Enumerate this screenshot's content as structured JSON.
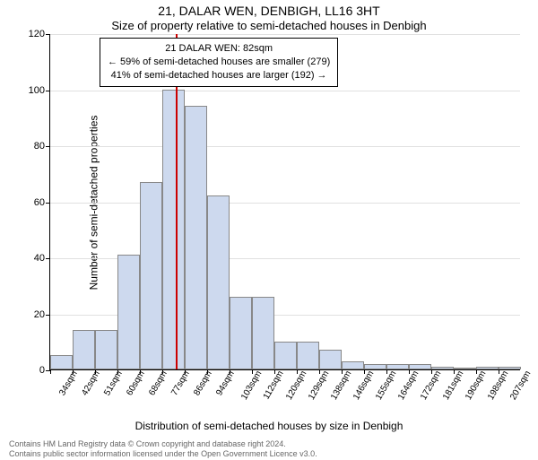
{
  "title": "21, DALAR WEN, DENBIGH, LL16 3HT",
  "subtitle": "Size of property relative to semi-detached houses in Denbigh",
  "y_axis": {
    "label": "Number of semi-detached properties",
    "ticks": [
      0,
      20,
      40,
      60,
      80,
      100,
      120
    ],
    "max": 120
  },
  "x_axis": {
    "label": "Distribution of semi-detached houses by size in Denbigh",
    "categories": [
      "34sqm",
      "42sqm",
      "51sqm",
      "60sqm",
      "68sqm",
      "77sqm",
      "86sqm",
      "94sqm",
      "103sqm",
      "112sqm",
      "120sqm",
      "129sqm",
      "138sqm",
      "146sqm",
      "155sqm",
      "164sqm",
      "172sqm",
      "181sqm",
      "190sqm",
      "198sqm",
      "207sqm"
    ]
  },
  "histogram": {
    "type": "histogram",
    "bar_color": "#cdd9ee",
    "bar_border": "#888888",
    "grid_color": "#e0e0e0",
    "background_color": "#ffffff",
    "values": [
      5,
      14,
      14,
      41,
      67,
      100,
      94,
      62,
      26,
      26,
      10,
      10,
      7,
      3,
      2,
      2,
      2,
      1,
      0,
      1,
      1
    ]
  },
  "marker": {
    "value": 82,
    "position_category_index": 5.6,
    "color": "#cc0000"
  },
  "legend": {
    "line1": "21 DALAR WEN: 82sqm",
    "line2": "← 59% of semi-detached houses are smaller (279)",
    "line3": "41% of semi-detached houses are larger (192) →"
  },
  "footer": {
    "line1": "Contains HM Land Registry data © Crown copyright and database right 2024.",
    "line2": "Contains public sector information licensed under the Open Government Licence v3.0."
  }
}
